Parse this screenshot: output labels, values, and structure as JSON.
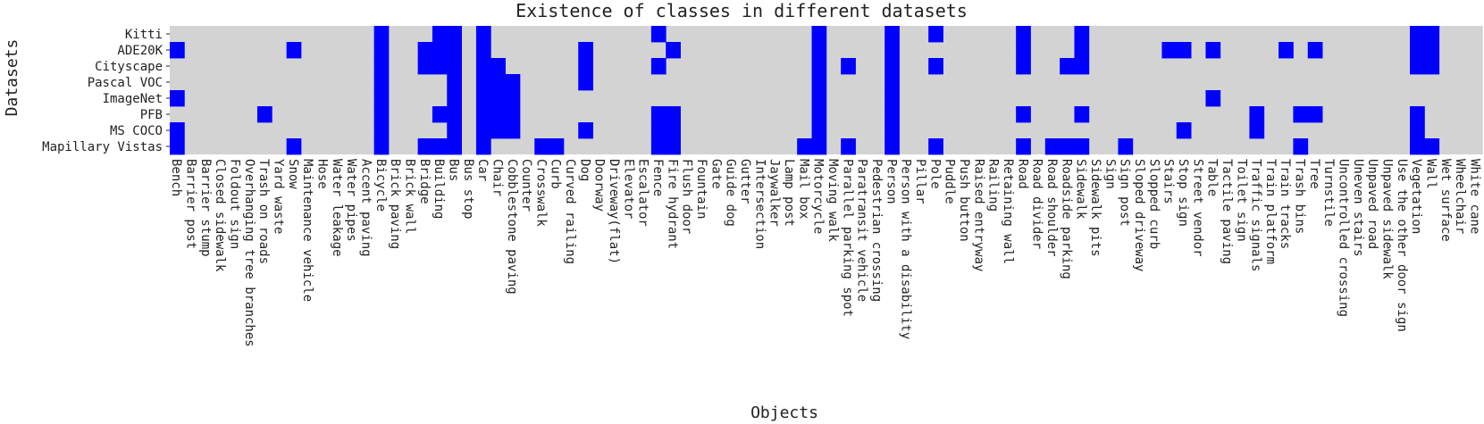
{
  "chart_data": {
    "type": "heatmap",
    "title": "Existence of classes in different datasets",
    "xlabel": "Objects",
    "ylabel": "Datasets",
    "colors": {
      "present": "#0000ff",
      "absent": "#d3d3d3"
    },
    "datasets": [
      "Kitti",
      "ADE20K",
      "Cityscape",
      "Pascal VOC",
      "ImageNet",
      "PFB",
      "MS COCO",
      "Mapillary Vistas"
    ],
    "objects": [
      "Bench",
      "Barrier post",
      "Barrier stump",
      "Closed sidewalk",
      "Foldout sign",
      "Overhanging tree branches",
      "Trash on roads",
      "Yard waste",
      "Snow",
      "Maintenance vehicle",
      "Hose",
      "Water leakage",
      "Water pipes",
      "Accent paving",
      "Bicycle",
      "Brick paving",
      "Brick wall",
      "Bridge",
      "Building",
      "Bus",
      "Bus stop",
      "Car",
      "Chair",
      "Cobblestone paving",
      "Counter",
      "Crosswalk",
      "Curb",
      "Curved railing",
      "Dog",
      "Doorway",
      "Driveway(flat)",
      "Elevator",
      "Escalator",
      "Fence",
      "Fire hydrant",
      "Flush door",
      "Fountain",
      "Gate",
      "Guide dog",
      "Gutter",
      "Intersection",
      "Jaywalker",
      "Lamp post",
      "Mail box",
      "Motorcycle",
      "Moving walk",
      "Parallel parking spot",
      "Paratransit vehicle",
      "Pedestrian crossing",
      "Person",
      "Person with a disability",
      "Pillar",
      "Pole",
      "Puddle",
      "Push button",
      "Raised entryway",
      "Railing",
      "Retaining wall",
      "Road",
      "Road divider",
      "Road shoulder",
      "Roadside parking",
      "Sidewalk",
      "Sidewalk pits",
      "Sign",
      "Sign post",
      "Sloped driveway",
      "Slopped curb",
      "Stairs",
      "Stop sign",
      "Street vendor",
      "Table",
      "Tactile paving",
      "Toilet sign",
      "Traffic signals",
      "Train platform",
      "Train tracks",
      "Trash bins",
      "Tree",
      "Turnstile",
      "Uncontrolled crossing",
      "Uneven stairs",
      "Unpaved road",
      "Unpaved sidewalk",
      "Use the other door sign",
      "Vegetation",
      "Wall",
      "Wet surface",
      "Wheelchair",
      "White cane"
    ],
    "present": {
      "Kitti": [
        "Bicycle",
        "Building",
        "Bus",
        "Car",
        "Fence",
        "Motorcycle",
        "Person",
        "Pole",
        "Road",
        "Sidewalk",
        "Vegetation",
        "Wall"
      ],
      "ADE20K": [
        "Bench",
        "Snow",
        "Bicycle",
        "Bridge",
        "Building",
        "Bus",
        "Car",
        "Dog",
        "Fire hydrant",
        "Motorcycle",
        "Person",
        "Road",
        "Sidewalk",
        "Stairs",
        "Stop sign",
        "Table",
        "Train tracks",
        "Tree",
        "Vegetation",
        "Wall"
      ],
      "Cityscape": [
        "Bicycle",
        "Bridge",
        "Building",
        "Bus",
        "Car",
        "Chair",
        "Dog",
        "Fence",
        "Motorcycle",
        "Parallel parking spot",
        "Person",
        "Pole",
        "Road",
        "Roadside parking",
        "Sidewalk",
        "Vegetation",
        "Wall"
      ],
      "Pascal VOC": [
        "Bicycle",
        "Bus",
        "Car",
        "Chair",
        "Cobblestone paving",
        "Dog",
        "Motorcycle",
        "Person"
      ],
      "ImageNet": [
        "Bench",
        "Bicycle",
        "Bus",
        "Car",
        "Chair",
        "Cobblestone paving",
        "Motorcycle",
        "Person",
        "Table"
      ],
      "PFB": [
        "Trash on roads",
        "Bicycle",
        "Building",
        "Bus",
        "Car",
        "Chair",
        "Cobblestone paving",
        "Fence",
        "Fire hydrant",
        "Motorcycle",
        "Person",
        "Road",
        "Sidewalk",
        "Traffic signals",
        "Trash bins",
        "Tree",
        "Vegetation"
      ],
      "MS COCO": [
        "Bench",
        "Bicycle",
        "Bus",
        "Car",
        "Chair",
        "Cobblestone paving",
        "Dog",
        "Fence",
        "Fire hydrant",
        "Motorcycle",
        "Person",
        "Stop sign",
        "Traffic signals",
        "Vegetation"
      ],
      "Mapillary Vistas": [
        "Bench",
        "Snow",
        "Bicycle",
        "Bridge",
        "Building",
        "Bus",
        "Car",
        "Crosswalk",
        "Curb",
        "Fence",
        "Fire hydrant",
        "Mail box",
        "Motorcycle",
        "Parallel parking spot",
        "Person",
        "Pole",
        "Road",
        "Road shoulder",
        "Roadside parking",
        "Sidewalk",
        "Sign post",
        "Trash bins",
        "Vegetation",
        "Wall"
      ]
    }
  }
}
